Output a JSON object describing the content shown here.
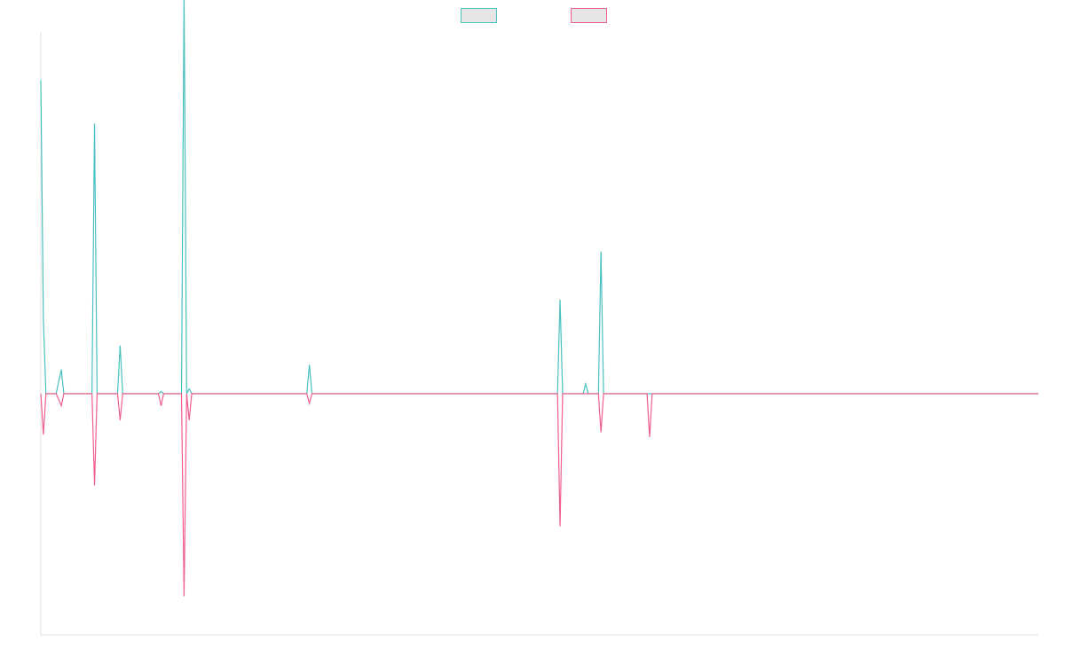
{
  "chart_data": {
    "type": "line",
    "title": "",
    "xlabel": "",
    "ylabel": "",
    "grid": false,
    "legend_position": "top",
    "x_range": [
      0,
      195
    ],
    "ylim": [
      -1,
      1.5
    ],
    "x": [
      0,
      0.5,
      1,
      3,
      4,
      4.5,
      5,
      10,
      10.5,
      11,
      15,
      15.5,
      16,
      23,
      23.5,
      24,
      27.5,
      28,
      28.5,
      29,
      29.5,
      52,
      52.5,
      53,
      101,
      101.5,
      102,
      106,
      106.5,
      107,
      109,
      109.5,
      110,
      118.5,
      119,
      119.5,
      195
    ],
    "series": [
      {
        "name": "",
        "color": "#4bc0c0",
        "values": [
          1.3,
          0.3,
          0,
          0,
          0.1,
          0,
          0,
          0,
          1.12,
          0,
          0,
          0.2,
          0,
          0,
          0.01,
          0,
          0,
          1.66,
          0,
          0.02,
          0,
          0,
          0.12,
          0,
          0,
          0.39,
          0,
          0,
          0.04,
          0,
          0,
          0.59,
          0,
          0,
          0,
          0,
          0
        ]
      },
      {
        "name": "",
        "color": "#f0608c",
        "values": [
          0,
          -0.17,
          0,
          0,
          -0.05,
          0,
          0,
          0,
          -0.38,
          0,
          0,
          -0.11,
          0,
          0,
          -0.05,
          0,
          0,
          -0.84,
          0,
          -0.11,
          0,
          0,
          -0.04,
          0,
          0,
          -0.55,
          0,
          0,
          0,
          0,
          0,
          -0.16,
          0,
          0,
          -0.18,
          0,
          0
        ]
      }
    ]
  }
}
